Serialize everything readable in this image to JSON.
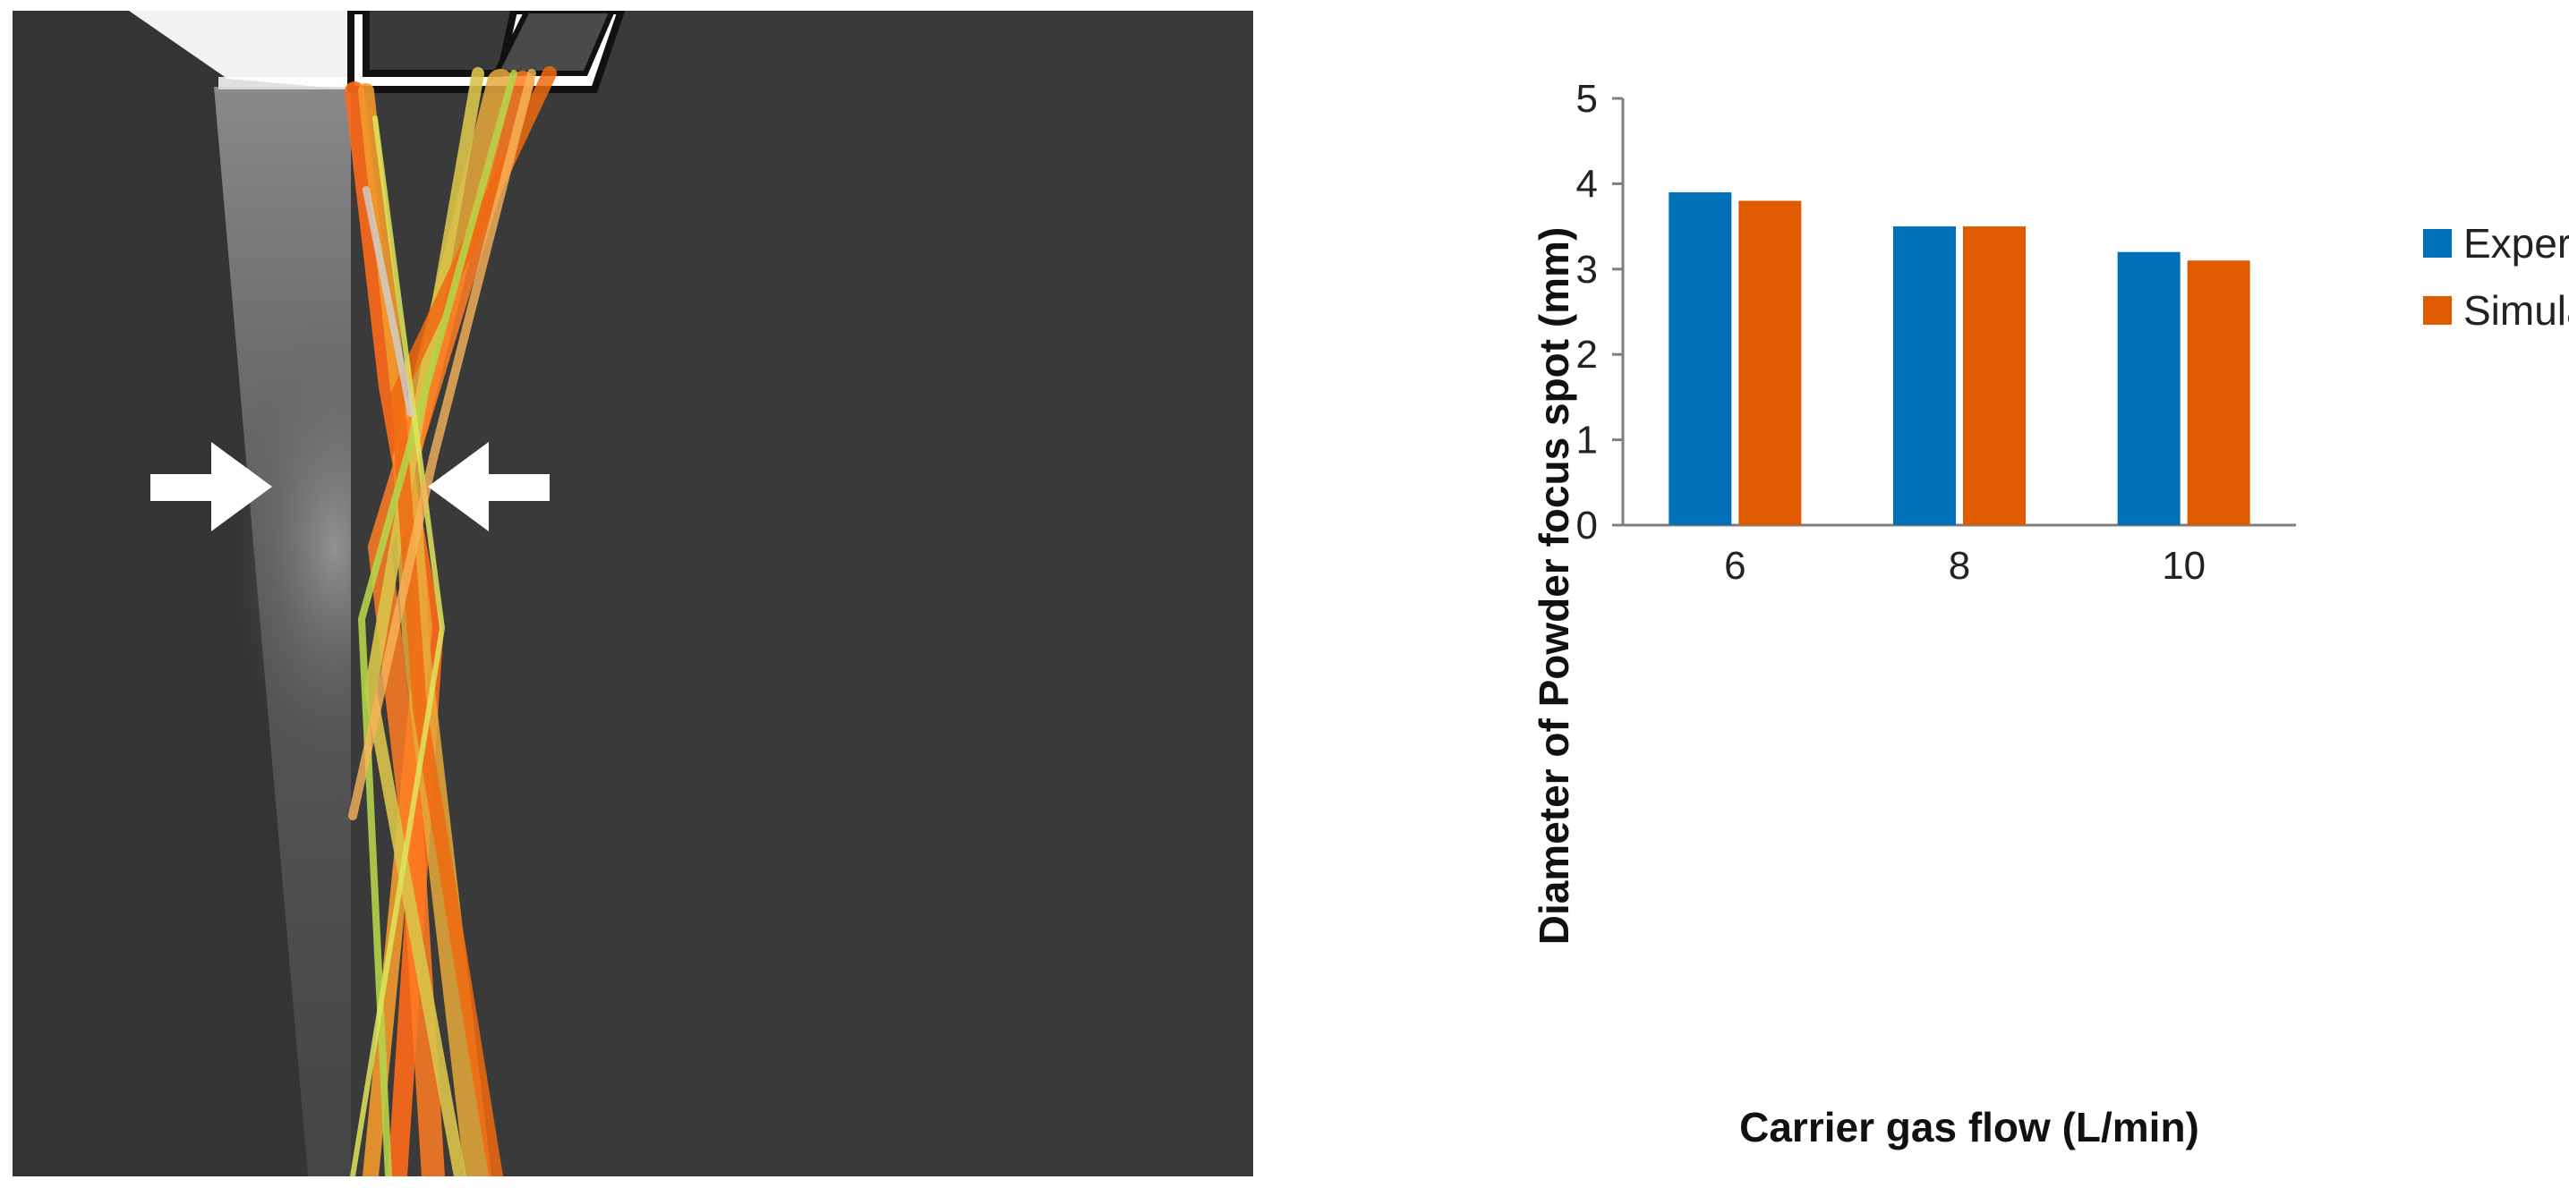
{
  "colors": {
    "experimental": "#0070B8",
    "simulation": "#E05A00",
    "photo_background": "#333333"
  },
  "photo": {
    "description_icons": [
      "arrow-right-icon",
      "arrow-left-icon"
    ]
  },
  "chart_data": {
    "type": "bar",
    "categories": [
      "6",
      "8",
      "10"
    ],
    "series": [
      {
        "name": "Experimental",
        "values": [
          3.9,
          3.5,
          3.2
        ]
      },
      {
        "name": "Simulation",
        "values": [
          3.8,
          3.5,
          3.1
        ]
      }
    ],
    "xlabel": "Carrier gas flow (L/min)",
    "ylabel": "Diameter of Powder focus spot (mm)",
    "ylim": [
      0,
      5
    ],
    "yticks": [
      "0",
      "1",
      "2",
      "3",
      "4",
      "5"
    ],
    "grid": false,
    "legend": "top-right"
  }
}
